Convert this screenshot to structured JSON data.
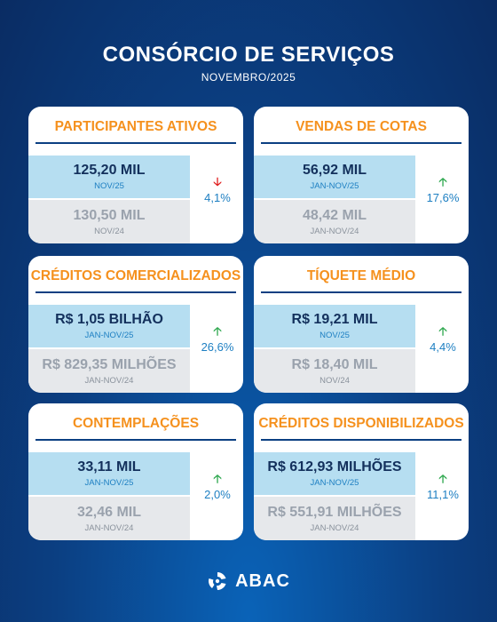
{
  "header": {
    "title": "CONSÓRCIO DE SERVIÇOS",
    "subtitle": "NOVEMBRO/2025"
  },
  "cards": [
    {
      "title": "PARTICIPANTES ATIVOS",
      "current_value": "125,20 MIL",
      "current_period": "NOV/25",
      "previous_value": "130,50 MIL",
      "previous_period": "NOV/24",
      "change": "4,1%",
      "trend_icon": "arrow-down-icon"
    },
    {
      "title": "VENDAS DE COTAS",
      "current_value": "56,92 MIL",
      "current_period": "JAN-NOV/25",
      "previous_value": "48,42 MIL",
      "previous_period": "JAN-NOV/24",
      "change": "17,6%",
      "trend_icon": "arrow-up-icon"
    },
    {
      "title": "CRÉDITOS COMERCIALIZADOS",
      "current_value": "R$ 1,05 BILHÃO",
      "current_period": "JAN-NOV/25",
      "previous_value": "R$ 829,35 MILHÕES",
      "previous_period": "JAN-NOV/24",
      "change": "26,6%",
      "trend_icon": "arrow-up-icon"
    },
    {
      "title": "TÍQUETE MÉDIO",
      "current_value": "R$ 19,21 MIL",
      "current_period": "NOV/25",
      "previous_value": "R$ 18,40 MIL",
      "previous_period": "NOV/24",
      "change": "4,4%",
      "trend_icon": "arrow-up-icon"
    },
    {
      "title": "CONTEMPLAÇÕES",
      "current_value": "33,11 MIL",
      "current_period": "JAN-NOV/25",
      "previous_value": "32,46 MIL",
      "previous_period": "JAN-NOV/24",
      "change": "2,0%",
      "trend_icon": "arrow-up-icon"
    },
    {
      "title": "CRÉDITOS DISPONIBILIZADOS",
      "current_value": "R$ 612,93 MILHÕES",
      "current_period": "JAN-NOV/25",
      "previous_value": "R$ 551,91 MILHÕES",
      "previous_period": "JAN-NOV/24",
      "change": "11,1%",
      "trend_icon": "arrow-up-icon"
    }
  ],
  "footer": {
    "logo_text": "ABAC",
    "logo_icon": "abac-logo-icon"
  },
  "colors": {
    "accent": "#f5911e",
    "navy": "#0b3f82",
    "current_bg": "#b6def1",
    "previous_bg": "#e6e8eb",
    "up": "#2fa84f",
    "down": "#e02020",
    "pct": "#1d7fc2"
  }
}
